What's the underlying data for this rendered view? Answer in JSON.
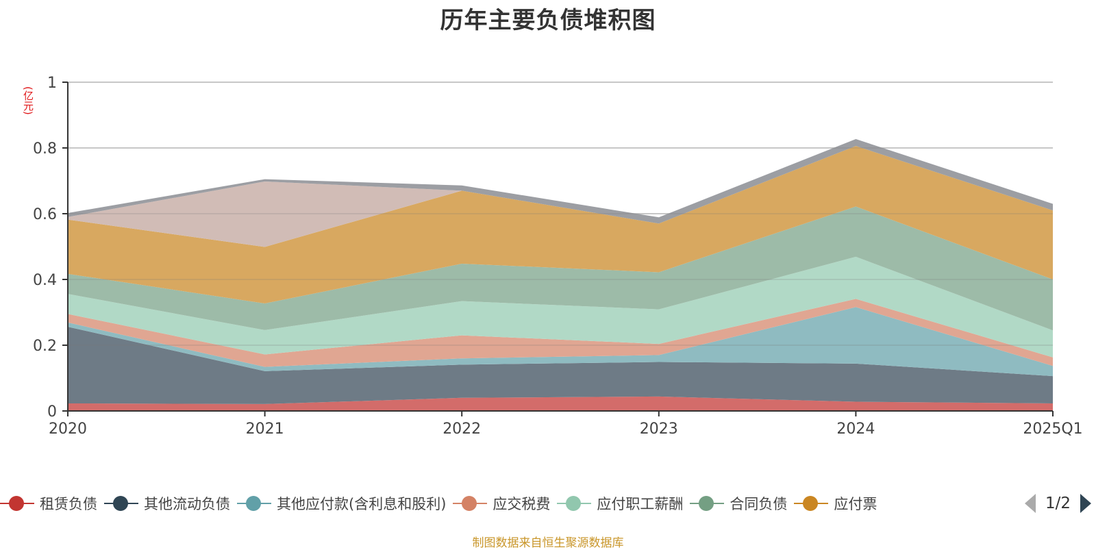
{
  "title": "历年主要负债堆积图",
  "unit_label": "(亿元)",
  "footer": "制图数据来自恒生聚源数据库",
  "legend_pager": {
    "text": "1/2",
    "prev_icon": "triangle-left-icon",
    "next_icon": "triangle-right-icon"
  },
  "chart_data": {
    "type": "area",
    "stacked": true,
    "title": "历年主要负债堆积图",
    "ylabel": "(亿元)",
    "xlabel": "",
    "ylim": [
      0,
      1
    ],
    "yticks": [
      "0",
      "0.2",
      "0.4",
      "0.6",
      "0.8",
      "1"
    ],
    "ytick_values": [
      0,
      0.2,
      0.4,
      0.6,
      0.8,
      1
    ],
    "grid": true,
    "legend_position": "bottom",
    "categories": [
      "2020",
      "2021",
      "2022",
      "2023",
      "2024",
      "2025Q1"
    ],
    "series": [
      {
        "name": "租赁负债",
        "color": "#c23531",
        "fill": "#d36c6a",
        "in_legend": true,
        "values": [
          0.023,
          0.021,
          0.04,
          0.044,
          0.028,
          0.023
        ]
      },
      {
        "name": "其他流动负债",
        "color": "#2f4554",
        "fill": "#6e7b86",
        "in_legend": true,
        "values": [
          0.233,
          0.1,
          0.101,
          0.105,
          0.116,
          0.083
        ]
      },
      {
        "name": "其他应付款(含利息和股利)",
        "color": "#61a0a8",
        "fill": "#8fbbc1",
        "in_legend": true,
        "values": [
          0.013,
          0.013,
          0.019,
          0.021,
          0.172,
          0.031
        ]
      },
      {
        "name": "应交税费",
        "color": "#d48265",
        "fill": "#e0a692",
        "in_legend": true,
        "values": [
          0.026,
          0.038,
          0.07,
          0.034,
          0.025,
          0.026
        ]
      },
      {
        "name": "应付职工薪酬",
        "color": "#91c7ae",
        "fill": "#b1d9c6",
        "in_legend": true,
        "values": [
          0.061,
          0.074,
          0.104,
          0.105,
          0.128,
          0.082
        ]
      },
      {
        "name": "合同负债",
        "color": "#749f83",
        "fill": "#9dbba8",
        "in_legend": true,
        "values": [
          0.061,
          0.081,
          0.114,
          0.113,
          0.153,
          0.155
        ]
      },
      {
        "name": "应付票据",
        "color": "#ca8622",
        "fill": "#d8a860",
        "in_legend": true,
        "legend_label_visible": "应付票",
        "values": [
          0.165,
          0.172,
          0.222,
          0.148,
          0.184,
          0.21
        ]
      },
      {
        "color": "#bda29a",
        "fill": "#d1bcb6",
        "in_legend": false,
        "values": [
          0.008,
          0.199,
          0.0,
          0.0,
          0.0,
          0.0
        ]
      },
      {
        "color": "#6e7074",
        "fill": "#9c9ea3",
        "in_legend": false,
        "values": [
          0.012,
          0.007,
          0.016,
          0.019,
          0.021,
          0.02
        ]
      }
    ]
  }
}
